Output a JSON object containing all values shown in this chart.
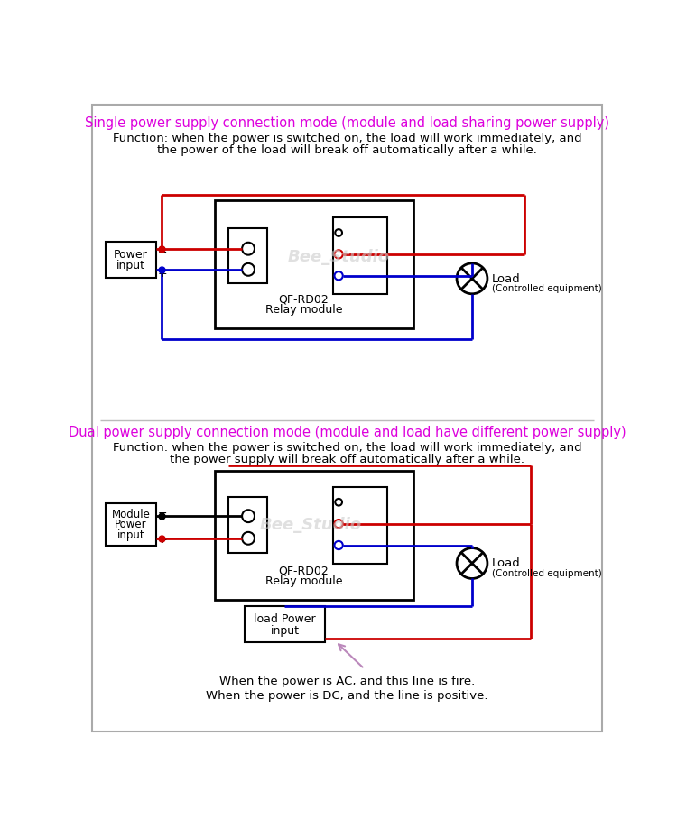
{
  "title1": "Single power supply connection mode (module and load sharing power supply)",
  "desc1_line1": "Function: when the power is switched on, the load will work immediately, and",
  "desc1_line2": "the power of the load will break off automatically after a while.",
  "title2": "Dual power supply connection mode (module and load have different power supply)",
  "desc2_line1": "Function: when the power is switched on, the load will work immediately, and",
  "desc2_line2": "the power supply will break off automatically after a while.",
  "watermark": "Bee_Studio",
  "relay_label1": "QF-RD02",
  "relay_label2": "Relay module",
  "power_label1_line1": "Power",
  "power_label1_line2": "input",
  "power_label2_line1": "Module",
  "power_label2_line2": "Power",
  "power_label2_line3": "input",
  "load_power_line1": "load Power",
  "load_power_line2": "input",
  "load_label": "Load",
  "load_sub": "(Controlled equipment)",
  "note_line1": "When the power is AC, and this line is fire.",
  "note_line2": "When the power is DC, and the line is positive.",
  "red": "#cc0000",
  "blue": "#0000cc",
  "black": "#000000",
  "magenta": "#dd00dd",
  "arrow_color": "#bb88bb"
}
